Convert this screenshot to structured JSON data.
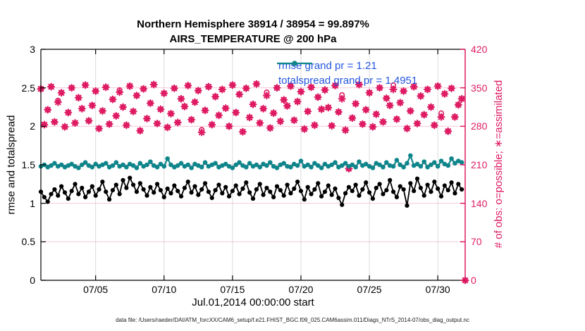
{
  "caption": "data file: /Users/raeder/DAI/ATM_forcXX/CAM6_setup/f.e21.FHIST_BGC.f09_025.CAM6assim.011/Diags_NTrS_2014-07/obs_diag_output.nc",
  "colors": {
    "obs_pink": "#de1b63",
    "spread_teal": "#0e858a",
    "legend_blue": "#2456e0",
    "grid_gray": "#d8d8d8",
    "grid_pink": "rgba(222,27,99,0.28)",
    "axis_black": "#000000"
  },
  "chart_data": {
    "type": "line+scatter",
    "title_line1": "Northern Hemisphere 38914 / 38954 = 99.897%",
    "title_line2": "AIRS_TEMPERATURE @ 200 hPa",
    "xlabel": "Jul.01,2014 00:00:00 start",
    "ylabel_left": "rmse and totalspread",
    "ylabel_right": "# of obs: o=possible; ∗=assimilated",
    "xlim_days": [
      0,
      31
    ],
    "time_step_hours": 6,
    "x_ticks": {
      "labels": [
        "07/05",
        "07/10",
        "07/15",
        "07/20",
        "07/25",
        "07/30"
      ],
      "days": [
        4,
        9,
        14,
        19,
        24,
        29
      ]
    },
    "y_left": {
      "min": 0,
      "max": 3,
      "ticks": [
        0,
        0.5,
        1,
        1.5,
        2,
        2.5,
        3
      ],
      "tick_labels": [
        "0",
        "0.5",
        "1",
        "1.5",
        "2",
        "2.5",
        "3"
      ]
    },
    "y_right": {
      "min": 0,
      "max": 420,
      "ticks": [
        0,
        70,
        140,
        210,
        280,
        350,
        420
      ],
      "tick_labels": [
        "0",
        "70",
        "140",
        "210",
        "280",
        "350",
        "420"
      ]
    },
    "legend": [
      {
        "series": "rmse",
        "label": "rmse grand pr = 1.21"
      },
      {
        "series": "totalspread",
        "label": "totalspread grand pr = 1.4951"
      }
    ],
    "series": {
      "rmse": [
        1.15,
        1.08,
        1.02,
        1.12,
        1.18,
        1.1,
        1.22,
        1.14,
        1.06,
        1.16,
        1.25,
        1.12,
        1.2,
        1.08,
        1.15,
        1.22,
        1.1,
        1.18,
        1.28,
        1.15,
        1.05,
        1.17,
        1.24,
        1.12,
        1.3,
        1.2,
        1.33,
        1.24,
        1.15,
        1.26,
        1.18,
        1.1,
        1.21,
        1.14,
        1.25,
        1.17,
        1.08,
        1.19,
        1.13,
        1.23,
        1.16,
        1.09,
        1.2,
        1.28,
        1.14,
        1.22,
        1.11,
        1.18,
        1.26,
        1.15,
        1.07,
        1.17,
        1.24,
        1.13,
        1.21,
        1.09,
        1.16,
        1.23,
        1.12,
        1.19,
        1.27,
        1.14,
        1.06,
        1.18,
        1.25,
        1.11,
        1.2,
        1.15,
        1.08,
        1.22,
        1.17,
        1.1,
        1.24,
        1.13,
        1.19,
        1.28,
        1.16,
        1.05,
        1.21,
        1.12,
        1.18,
        1.26,
        1.09,
        1.15,
        1.23,
        1.11,
        1.19,
        1.07,
        0.98,
        1.13,
        1.21,
        1.16,
        1.24,
        1.1,
        1.18,
        1.27,
        1.14,
        1.06,
        1.2,
        1.25,
        1.12,
        1.17,
        1.3,
        1.15,
        1.08,
        1.22,
        1.18,
        0.97,
        1.26,
        1.16,
        1.32,
        1.2,
        1.1,
        1.24,
        1.15,
        1.28,
        1.19,
        1.09,
        1.23,
        1.17,
        1.27,
        1.13,
        1.25,
        1.18
      ],
      "totalspread": [
        1.48,
        1.5,
        1.47,
        1.49,
        1.52,
        1.48,
        1.5,
        1.47,
        1.49,
        1.51,
        1.48,
        1.46,
        1.5,
        1.53,
        1.49,
        1.47,
        1.51,
        1.48,
        1.5,
        1.52,
        1.47,
        1.49,
        1.53,
        1.48,
        1.5,
        1.47,
        1.51,
        1.49,
        1.46,
        1.52,
        1.48,
        1.5,
        1.54,
        1.49,
        1.47,
        1.51,
        1.48,
        1.58,
        1.5,
        1.47,
        1.49,
        1.52,
        1.48,
        1.5,
        1.46,
        1.51,
        1.49,
        1.47,
        1.53,
        1.48,
        1.5,
        1.52,
        1.47,
        1.49,
        1.51,
        1.48,
        1.46,
        1.5,
        1.53,
        1.49,
        1.47,
        1.52,
        1.48,
        1.5,
        1.47,
        1.51,
        1.49,
        1.53,
        1.48,
        1.46,
        1.5,
        1.52,
        1.48,
        1.47,
        1.51,
        1.49,
        1.55,
        1.48,
        1.5,
        1.47,
        1.52,
        1.49,
        1.46,
        1.51,
        1.48,
        1.5,
        1.53,
        1.47,
        1.49,
        1.52,
        1.48,
        1.5,
        1.47,
        1.54,
        1.49,
        1.51,
        1.48,
        1.46,
        1.52,
        1.5,
        1.47,
        1.53,
        1.49,
        1.48,
        1.56,
        1.5,
        1.47,
        1.52,
        1.62,
        1.49,
        1.51,
        1.48,
        1.54,
        1.47,
        1.5,
        1.53,
        1.48,
        1.55,
        1.51,
        1.49,
        1.58,
        1.52,
        1.55,
        1.53
      ],
      "obs_possible": [
        348,
        283,
        310,
        352,
        288,
        327,
        341,
        279,
        305,
        350,
        286,
        332,
        312,
        355,
        290,
        318,
        344,
        276,
        308,
        351,
        284,
        329,
        299,
        346,
        315,
        282,
        353,
        307,
        336,
        272,
        348,
        294,
        322,
        356,
        285,
        311,
        340,
        278,
        303,
        349,
        287,
        330,
        316,
        354,
        292,
        324,
        345,
        274,
        309,
        352,
        283,
        334,
        300,
        347,
        313,
        280,
        355,
        305,
        338,
        270,
        349,
        296,
        320,
        357,
        286,
        312,
        342,
        277,
        304,
        350,
        289,
        328,
        317,
        353,
        291,
        325,
        343,
        275,
        307,
        351,
        282,
        333,
        311,
        346,
        314,
        281,
        354,
        306,
        337,
        273,
        203,
        295,
        321,
        356,
        284,
        310,
        341,
        279,
        302,
        350,
        288,
        331,
        318,
        355,
        293,
        323,
        344,
        276,
        308,
        352,
        285,
        335,
        301,
        347,
        315,
        282,
        353,
        304,
        339,
        271,
        349,
        297,
        319,
        330,
        0
      ],
      "obs_assimilated": [
        348,
        283,
        310,
        352,
        288,
        324,
        341,
        279,
        305,
        350,
        286,
        332,
        312,
        355,
        290,
        318,
        344,
        276,
        308,
        351,
        284,
        329,
        299,
        342,
        315,
        282,
        353,
        307,
        336,
        272,
        348,
        294,
        322,
        356,
        285,
        311,
        340,
        278,
        303,
        349,
        287,
        330,
        316,
        354,
        292,
        324,
        345,
        269,
        309,
        352,
        283,
        334,
        300,
        347,
        313,
        280,
        355,
        305,
        338,
        270,
        349,
        296,
        320,
        357,
        286,
        312,
        336,
        277,
        304,
        350,
        289,
        328,
        317,
        353,
        291,
        325,
        343,
        275,
        307,
        351,
        282,
        333,
        311,
        346,
        314,
        281,
        354,
        306,
        330,
        273,
        203,
        295,
        321,
        356,
        284,
        310,
        341,
        279,
        302,
        350,
        288,
        331,
        318,
        347,
        293,
        323,
        344,
        276,
        308,
        352,
        285,
        335,
        301,
        347,
        315,
        282,
        353,
        297,
        339,
        271,
        349,
        297,
        319,
        330,
        0
      ]
    }
  }
}
